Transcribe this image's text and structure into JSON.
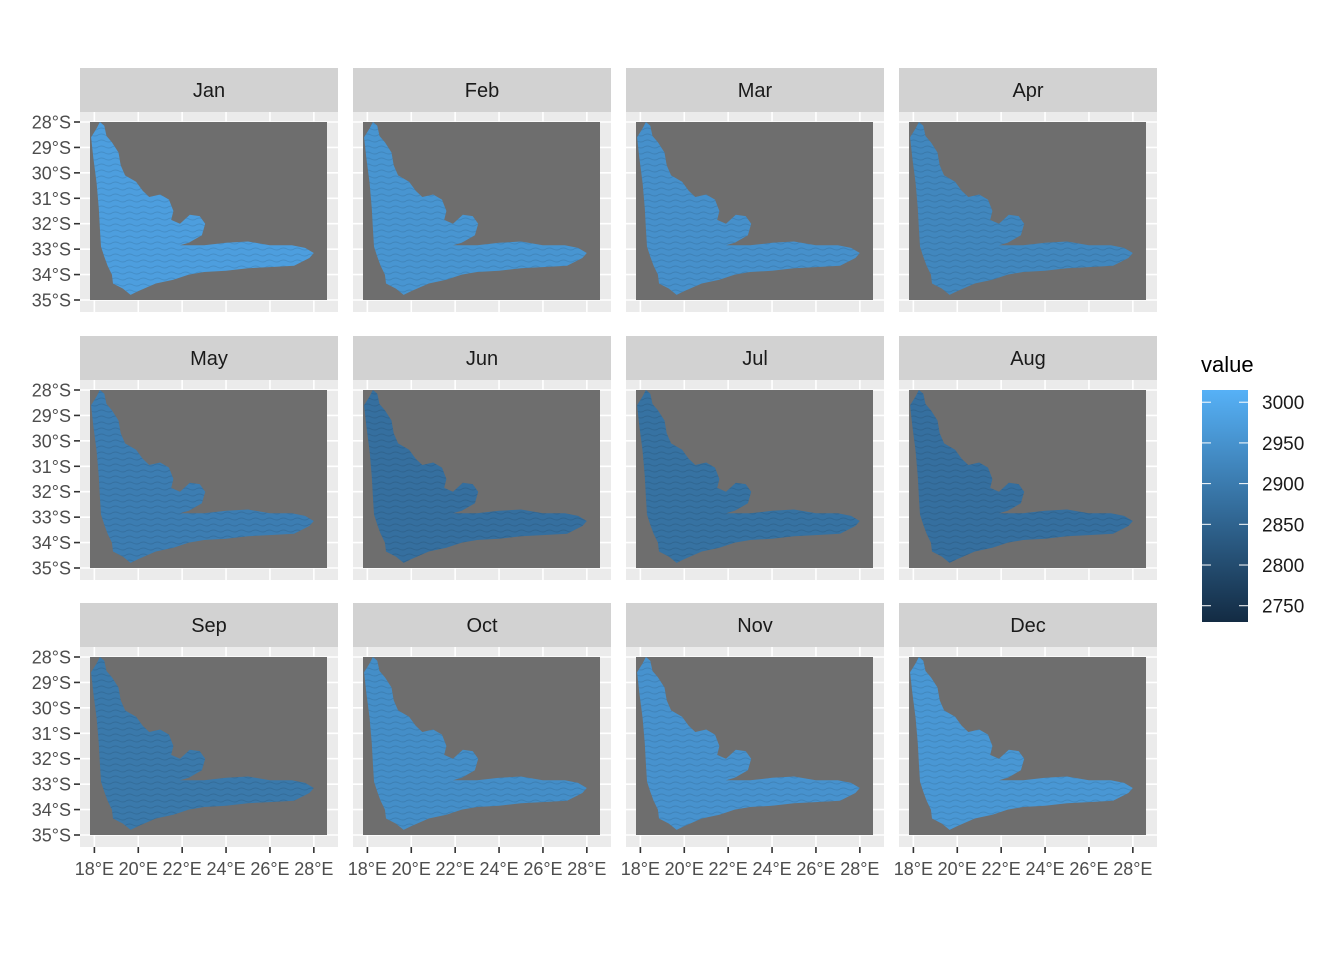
{
  "chart_data": {
    "type": "heatmap",
    "layout": "facet grid, 3 rows x 4 columns, shared axes",
    "panels": [
      {
        "label": "Jan",
        "value": 2975
      },
      {
        "label": "Feb",
        "value": 2955
      },
      {
        "label": "Mar",
        "value": 2945
      },
      {
        "label": "Apr",
        "value": 2925
      },
      {
        "label": "May",
        "value": 2905
      },
      {
        "label": "Jun",
        "value": 2875
      },
      {
        "label": "Jul",
        "value": 2880
      },
      {
        "label": "Aug",
        "value": 2875
      },
      {
        "label": "Sep",
        "value": 2895
      },
      {
        "label": "Oct",
        "value": 2940
      },
      {
        "label": "Nov",
        "value": 2950
      },
      {
        "label": "Dec",
        "value": 2960
      }
    ],
    "x_ticks": [
      "18°E",
      "20°E",
      "22°E",
      "24°E",
      "26°E",
      "28°E"
    ],
    "x_tick_values": [
      18,
      20,
      22,
      24,
      26,
      28
    ],
    "y_ticks": [
      "28°S",
      "29°S",
      "30°S",
      "31°S",
      "32°S",
      "33°S",
      "34°S",
      "35°S"
    ],
    "y_tick_values": [
      28,
      29,
      30,
      31,
      32,
      33,
      34,
      35
    ],
    "xlim": [
      17.8,
      28.6
    ],
    "ylim": [
      28,
      35
    ],
    "grid": true,
    "panel_background": "#ebebeb",
    "na_color": "#6e6e6e",
    "strip_color": "#d2d2d2",
    "legend": {
      "title": "value",
      "placement": "right",
      "range": [
        2730,
        3015
      ],
      "ticks": [
        3000,
        2950,
        2900,
        2850,
        2800,
        2750
      ],
      "color_low": "#132b43",
      "color_high": "#56b1f7"
    },
    "region_outline": [
      [
        18.1,
        28.25
      ],
      [
        18.25,
        28.0
      ],
      [
        18.45,
        28.15
      ],
      [
        18.55,
        28.55
      ],
      [
        18.8,
        28.8
      ],
      [
        19.1,
        29.2
      ],
      [
        19.2,
        29.7
      ],
      [
        19.4,
        30.1
      ],
      [
        19.9,
        30.35
      ],
      [
        20.2,
        30.7
      ],
      [
        20.5,
        30.95
      ],
      [
        21.0,
        30.85
      ],
      [
        21.4,
        31.05
      ],
      [
        21.6,
        31.5
      ],
      [
        21.5,
        31.85
      ],
      [
        21.9,
        32.0
      ],
      [
        22.35,
        31.65
      ],
      [
        22.8,
        31.7
      ],
      [
        23.05,
        32.0
      ],
      [
        22.9,
        32.45
      ],
      [
        22.3,
        32.75
      ],
      [
        21.9,
        32.85
      ],
      [
        23.0,
        32.85
      ],
      [
        24.0,
        32.75
      ],
      [
        25.0,
        32.7
      ],
      [
        26.0,
        32.85
      ],
      [
        27.0,
        32.85
      ],
      [
        27.6,
        32.95
      ],
      [
        28.0,
        33.15
      ],
      [
        27.8,
        33.35
      ],
      [
        27.1,
        33.65
      ],
      [
        26.2,
        33.7
      ],
      [
        25.0,
        33.75
      ],
      [
        24.0,
        33.85
      ],
      [
        23.0,
        33.9
      ],
      [
        22.3,
        34.0
      ],
      [
        21.6,
        34.2
      ],
      [
        20.8,
        34.35
      ],
      [
        20.0,
        34.65
      ],
      [
        19.65,
        34.8
      ],
      [
        19.3,
        34.55
      ],
      [
        18.85,
        34.35
      ],
      [
        18.8,
        34.0
      ],
      [
        18.6,
        33.65
      ],
      [
        18.45,
        33.3
      ],
      [
        18.3,
        32.9
      ],
      [
        18.25,
        32.2
      ],
      [
        18.2,
        31.4
      ],
      [
        18.1,
        30.4
      ],
      [
        17.95,
        29.4
      ],
      [
        17.85,
        28.6
      ]
    ]
  }
}
